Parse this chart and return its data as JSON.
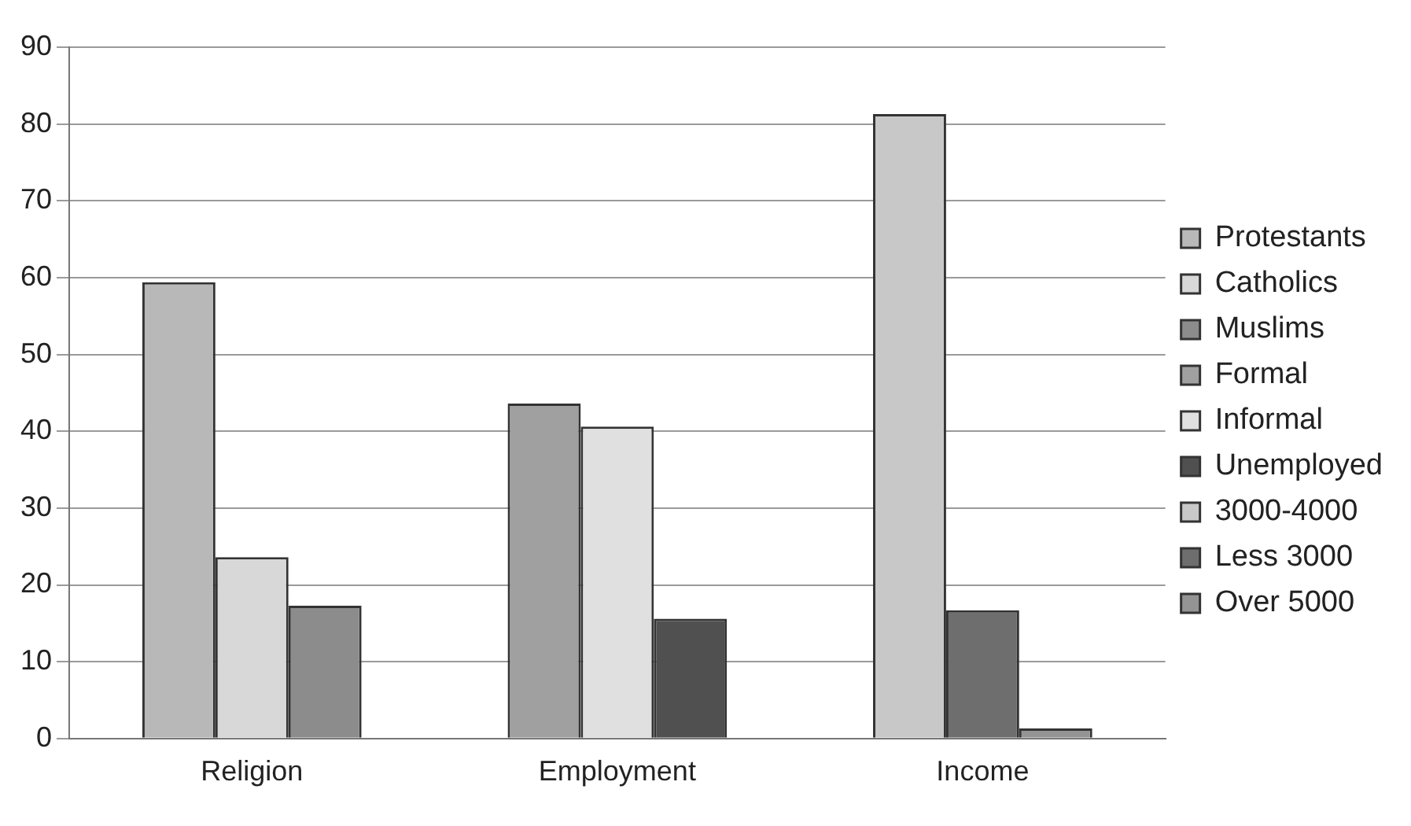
{
  "chart_data": {
    "type": "bar",
    "categories": [
      "Religion",
      "Employment",
      "Income"
    ],
    "series": [
      {
        "name": "Protestants",
        "color": "#b8b8b8",
        "values": [
          59.4,
          null,
          null
        ]
      },
      {
        "name": "Catholics",
        "color": "#d8d8d8",
        "values": [
          23.6,
          null,
          null
        ]
      },
      {
        "name": "Muslims",
        "color": "#8c8c8c",
        "values": [
          17.3,
          null,
          null
        ]
      },
      {
        "name": "Formal",
        "color": "#a0a0a0",
        "values": [
          null,
          43.6,
          null
        ]
      },
      {
        "name": "Informal",
        "color": "#e0e0e0",
        "values": [
          null,
          40.6,
          null
        ]
      },
      {
        "name": "Unemployed",
        "color": "#505050",
        "values": [
          null,
          15.6,
          null
        ]
      },
      {
        "name": "3000-4000",
        "color": "#c8c8c8",
        "values": [
          null,
          null,
          81.3
        ]
      },
      {
        "name": "Less 3000",
        "color": "#6e6e6e",
        "values": [
          null,
          null,
          16.7
        ]
      },
      {
        "name": "Over 5000",
        "color": "#949494",
        "values": [
          null,
          null,
          1.3
        ]
      }
    ],
    "ylim": [
      0,
      90
    ],
    "yticks": [
      0,
      10,
      20,
      30,
      40,
      50,
      60,
      70,
      80,
      90
    ],
    "grid": "y",
    "legend": "right"
  }
}
